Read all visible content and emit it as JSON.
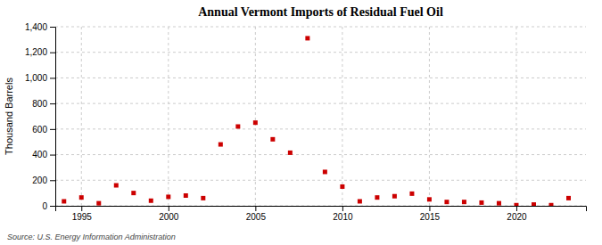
{
  "chart_data": {
    "type": "scatter",
    "title": "Annual Vermont Imports of Residual Fuel Oil",
    "ylabel": "Thousand Barrels",
    "annotations": [
      "Source: U.S. Energy Information Administration"
    ],
    "x": [
      1994,
      1995,
      1996,
      1997,
      1998,
      1999,
      2000,
      2001,
      2002,
      2003,
      2004,
      2005,
      2006,
      2007,
      2008,
      2009,
      2010,
      2011,
      2012,
      2013,
      2014,
      2015,
      2016,
      2017,
      2018,
      2019,
      2020,
      2021,
      2022,
      2023
    ],
    "values": [
      35,
      65,
      20,
      160,
      100,
      40,
      70,
      80,
      60,
      480,
      620,
      650,
      520,
      415,
      1310,
      265,
      150,
      35,
      65,
      75,
      95,
      50,
      30,
      30,
      25,
      20,
      5,
      10,
      5,
      60
    ],
    "color": "#cc0000",
    "marker": "square",
    "xlim": [
      1993.5,
      2024
    ],
    "xticks": [
      1995,
      2000,
      2005,
      2010,
      2015,
      2020
    ],
    "ylim": [
      0,
      1400
    ],
    "yticks": [
      0,
      200,
      400,
      600,
      800,
      {
        "value": 1000,
        "label": "1,000"
      },
      {
        "value": 1200,
        "label": "1,200"
      },
      {
        "value": 1400,
        "label": "1,400"
      }
    ],
    "grid": true
  }
}
